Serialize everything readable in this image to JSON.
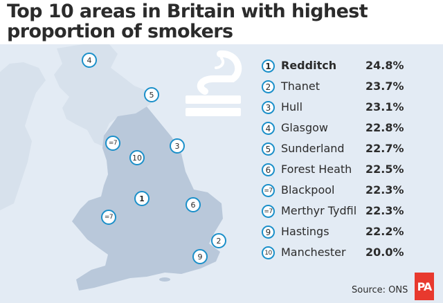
{
  "title": "Top 10 areas in Britain with highest proportion of smokers",
  "source": "Source: ONS",
  "logo": "PA",
  "colors": {
    "accent": "#1a8fc9",
    "land_dark": "#b9c8da",
    "land_light": "#d7e1ec",
    "sea": "#e3ebf4",
    "logo_red": "#e8392e"
  },
  "icons": [
    "cigarette-smoke-icon"
  ],
  "ranking": [
    {
      "rank": "1",
      "name": "Redditch",
      "value": "24.8%"
    },
    {
      "rank": "2",
      "name": "Thanet",
      "value": "23.7%"
    },
    {
      "rank": "3",
      "name": "Hull",
      "value": "23.1%"
    },
    {
      "rank": "4",
      "name": "Glasgow",
      "value": "22.8%"
    },
    {
      "rank": "5",
      "name": "Sunderland",
      "value": "22.7%"
    },
    {
      "rank": "6",
      "name": "Forest Heath",
      "value": "22.5%"
    },
    {
      "rank": "=7",
      "name": "Blackpool",
      "value": "22.3%"
    },
    {
      "rank": "=7",
      "name": "Merthyr Tydfil",
      "value": "22.3%"
    },
    {
      "rank": "9",
      "name": "Hastings",
      "value": "22.2%"
    },
    {
      "rank": "10",
      "name": "Manchester",
      "value": "20.0%"
    }
  ],
  "map_pins": [
    {
      "label": "4",
      "place": "Glasgow"
    },
    {
      "label": "5",
      "place": "Sunderland"
    },
    {
      "label": "=7",
      "place": "Blackpool"
    },
    {
      "label": "10",
      "place": "Manchester"
    },
    {
      "label": "3",
      "place": "Hull"
    },
    {
      "label": "1",
      "place": "Redditch"
    },
    {
      "label": "6",
      "place": "Forest Heath"
    },
    {
      "label": "=7",
      "place": "Merthyr Tydfil"
    },
    {
      "label": "2",
      "place": "Thanet"
    },
    {
      "label": "9",
      "place": "Hastings"
    }
  ]
}
